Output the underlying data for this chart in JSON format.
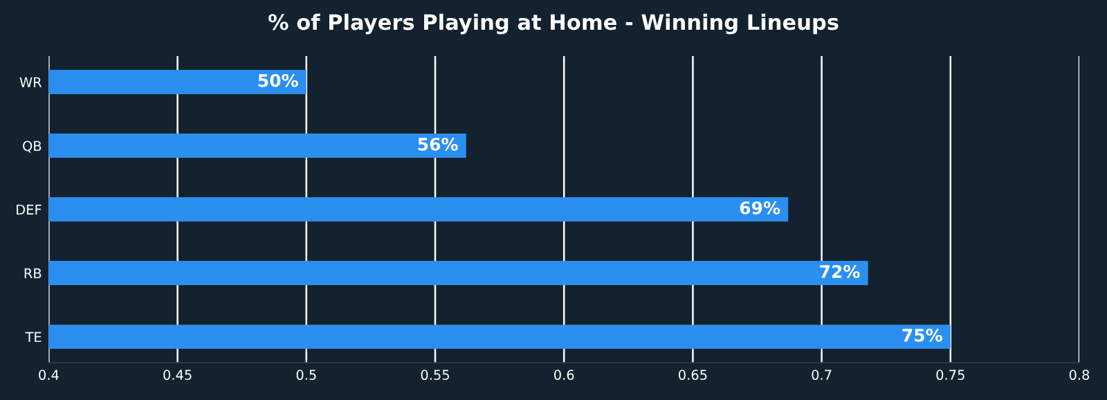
{
  "chart_data": {
    "type": "bar",
    "orientation": "horizontal",
    "title": "% of Players Playing at Home - Winning Lineups",
    "categories": [
      "WR",
      "QB",
      "DEF",
      "RB",
      "TE"
    ],
    "values": [
      0.5,
      0.562,
      0.687,
      0.718,
      0.75
    ],
    "value_labels": [
      "50%",
      "56%",
      "69%",
      "72%",
      "75%"
    ],
    "color": "#2b8ff0",
    "xlim": [
      0.4,
      0.8
    ],
    "xticks": [
      0.4,
      0.45,
      0.5,
      0.55,
      0.6,
      0.65,
      0.7,
      0.75,
      0.8
    ],
    "grid": "x"
  }
}
